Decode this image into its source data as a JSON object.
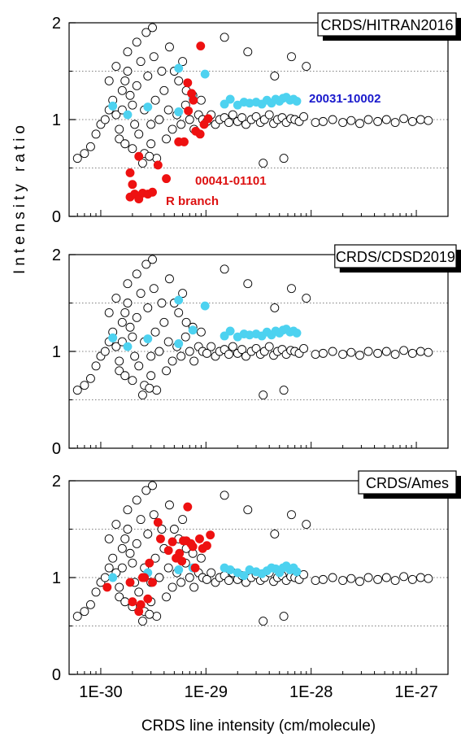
{
  "figure": {
    "xlabel": "CRDS line intensity (cm/molecule)",
    "ylabel": "Intensity ratio",
    "x_tick_labels": [
      "1E-30",
      "1E-29",
      "1E-28",
      "1E-27"
    ],
    "y_tick_labels": [
      "0",
      "1",
      "2"
    ]
  },
  "colors": {
    "open_marker_fill": "#ffffff",
    "open_marker_stroke": "#000000",
    "band_20031_10002": "#4dd2f0",
    "band_00041_01101": "#ee1111",
    "label_blue": "#1a1acc",
    "label_red": "#dd1111",
    "grid_dotted": "#555555"
  },
  "annotations": {
    "band_20031_10002": "20031-10002",
    "band_00041_01101": "00041-01101",
    "r_branch": "R branch"
  },
  "chart_data": [
    {
      "type": "scatter",
      "title": "CRDS/HITRAN2016",
      "xlabel": "CRDS line intensity (cm/molecule)",
      "ylabel": "Intensity ratio",
      "x_scale": "log",
      "xlim": [
        5e-31,
        2e-27
      ],
      "ylim": [
        0,
        2
      ],
      "yticks": [
        0,
        1,
        2
      ],
      "grid": "dotted horizontal at 0.5, 1.0, 1.5",
      "series": [
        {
          "marker": "open-circle",
          "x": [
            6e-31,
            7e-31,
            8e-31,
            9e-31,
            1e-30,
            1.1e-30,
            1.2e-30,
            1.3e-30,
            1.4e-30,
            1.5e-30,
            1.6e-30,
            1.7e-30,
            1.8e-30,
            1.9e-30,
            2e-30,
            2.2e-30,
            2.4e-30,
            2.6e-30,
            2.8e-30,
            3e-30,
            3.3e-30,
            3.6e-30,
            4e-30,
            4.4e-30,
            4.8e-30,
            5.3e-30,
            5.8e-30,
            6.4e-30,
            7e-30,
            7.7e-30,
            8.5e-30,
            9.3e-30,
            1.02e-29,
            1.12e-29,
            1.23e-29,
            1.35e-29,
            1.5e-29,
            1.65e-29,
            1.8e-29,
            2e-29,
            2.2e-29,
            2.4e-29,
            2.7e-29,
            3e-29,
            3.3e-29,
            3.6e-29,
            4e-29,
            4.4e-29,
            4.8e-29,
            5.3e-29,
            5.8e-29,
            6.4e-29,
            7e-29,
            7.7e-29,
            8.5e-29,
            1.1e-28,
            1.3e-28,
            1.6e-28,
            2e-28,
            2.4e-28,
            2.9e-28,
            3.5e-28,
            4.3e-28,
            5.2e-28,
            6.3e-28,
            7.6e-28,
            9.2e-28,
            1.1e-27,
            1.3e-27,
            1.5e-30,
            1.7e-30,
            2e-30,
            2.3e-30,
            2.6e-30,
            3e-30,
            3.4e-30,
            1.2e-30,
            1.4e-30,
            1.8e-30,
            2.2e-30,
            2.7e-30,
            3.2e-30,
            3.8e-30,
            4.5e-30,
            5.5e-30,
            6.5e-30,
            7.5e-30,
            9e-30,
            2.5e-30,
            2.9e-30,
            3.1e-30,
            1.6e-30,
            2.1e-30,
            4.2e-30,
            5e-30,
            6e-30,
            1.5e-29,
            2.5e-29,
            3.5e-29,
            4.5e-29,
            5.5e-29,
            6.5e-29,
            9e-29
          ],
          "y": [
            0.6,
            0.65,
            0.72,
            0.85,
            0.95,
            1.0,
            1.1,
            1.2,
            1.05,
            0.9,
            1.3,
            1.4,
            1.5,
            1.25,
            1.15,
            1.35,
            1.6,
            1.1,
            1.45,
            0.95,
            1.2,
            1.0,
            1.3,
            1.1,
            0.9,
            1.05,
            0.95,
            1.15,
            1.0,
            0.9,
            1.05,
            1.0,
            0.98,
            1.05,
            0.95,
            1.0,
            1.02,
            0.97,
            1.05,
            0.98,
            1.02,
            0.95,
            1.0,
            1.03,
            0.97,
            1.0,
            1.05,
            0.96,
            1.0,
            1.02,
            0.97,
            1.01,
            1.0,
            0.98,
            1.03,
            0.97,
            0.98,
            1.0,
            0.97,
            0.99,
            0.96,
            1.0,
            0.98,
            1.0,
            0.97,
            1.01,
            0.98,
            1.0,
            0.99,
            0.8,
            0.75,
            0.7,
            0.85,
            0.65,
            0.75,
            0.6,
            1.4,
            1.55,
            1.7,
            1.8,
            1.9,
            1.65,
            1.5,
            1.75,
            1.4,
            1.3,
            1.25,
            1.2,
            0.55,
            0.62,
            1.95,
            1.1,
            0.95,
            0.8,
            1.5,
            1.6,
            1.85,
            1.7,
            0.55,
            1.45,
            0.6,
            1.65,
            1.55
          ]
        },
        {
          "name": "20031-10002",
          "marker": "filled-circle",
          "x": [
            1.3e-30,
            1.8e-30,
            2.8e-30,
            5.5e-30,
            5.5e-30,
            7.5e-30,
            9.8e-30,
            1.5e-29,
            1.7e-29,
            2e-29,
            2.3e-29,
            2.6e-29,
            3e-29,
            3.4e-29,
            3.8e-29,
            4.2e-29,
            4.6e-29,
            5e-29,
            5.4e-29,
            5.8e-29,
            6.3e-29,
            6.8e-29,
            7.3e-29
          ],
          "y": [
            1.14,
            1.05,
            1.13,
            1.08,
            1.53,
            1.22,
            1.47,
            1.16,
            1.21,
            1.15,
            1.18,
            1.17,
            1.18,
            1.16,
            1.2,
            1.17,
            1.21,
            1.19,
            1.22,
            1.23,
            1.2,
            1.21,
            1.19
          ]
        },
        {
          "name": "00041-01101",
          "marker": "filled-circle",
          "x": [
            1.9e-30,
            2e-30,
            2.1e-30,
            2.3e-30,
            2.5e-30,
            2.8e-30,
            3.1e-30,
            3.5e-30,
            4.2e-30,
            5.5e-30,
            6.2e-30,
            6.7e-30,
            7.3e-30,
            8e-30,
            8.8e-30,
            9.6e-30,
            1.05e-29,
            8.9e-30,
            6.8e-30,
            7.6e-30,
            2.3e-30,
            1.9e-30
          ],
          "y": [
            0.2,
            0.33,
            0.23,
            0.18,
            0.24,
            0.23,
            0.25,
            0.53,
            0.39,
            0.77,
            0.77,
            1.38,
            1.27,
            0.88,
            0.85,
            0.95,
            1.01,
            1.76,
            1.09,
            1.2,
            0.62,
            0.45
          ]
        }
      ]
    },
    {
      "type": "scatter",
      "title": "CRDS/CDSD2019",
      "xlabel": "CRDS line intensity (cm/molecule)",
      "ylabel": "Intensity ratio",
      "x_scale": "log",
      "xlim": [
        5e-31,
        2e-27
      ],
      "ylim": [
        0,
        2
      ],
      "yticks": [
        0,
        1,
        2
      ],
      "grid": "dotted horizontal at 0.5, 1.0, 1.5",
      "series": [
        {
          "marker": "open-circle",
          "x": [
            6e-31,
            7e-31,
            8e-31,
            9e-31,
            1e-30,
            1.1e-30,
            1.2e-30,
            1.3e-30,
            1.4e-30,
            1.5e-30,
            1.6e-30,
            1.7e-30,
            1.8e-30,
            1.9e-30,
            2e-30,
            2.2e-30,
            2.4e-30,
            2.6e-30,
            2.8e-30,
            3e-30,
            3.3e-30,
            3.6e-30,
            4e-30,
            4.4e-30,
            4.8e-30,
            5.3e-30,
            5.8e-30,
            6.4e-30,
            7e-30,
            7.7e-30,
            8.5e-30,
            9.3e-30,
            1.02e-29,
            1.12e-29,
            1.23e-29,
            1.35e-29,
            1.5e-29,
            1.65e-29,
            1.8e-29,
            2e-29,
            2.2e-29,
            2.4e-29,
            2.7e-29,
            3e-29,
            3.3e-29,
            3.6e-29,
            4e-29,
            4.4e-29,
            4.8e-29,
            5.3e-29,
            5.8e-29,
            6.4e-29,
            7e-29,
            7.7e-29,
            8.5e-29,
            1.1e-28,
            1.3e-28,
            1.6e-28,
            2e-28,
            2.4e-28,
            2.9e-28,
            3.5e-28,
            4.3e-28,
            5.2e-28,
            6.3e-28,
            7.6e-28,
            9.2e-28,
            1.1e-27,
            1.3e-27,
            1.5e-30,
            1.7e-30,
            2e-30,
            2.3e-30,
            2.6e-30,
            3e-30,
            3.4e-30,
            1.2e-30,
            1.4e-30,
            1.8e-30,
            2.2e-30,
            2.7e-30,
            3.2e-30,
            3.8e-30,
            4.5e-30,
            5.5e-30,
            6.5e-30,
            7.5e-30,
            9e-30,
            2.5e-30,
            2.9e-30,
            3.1e-30,
            1.6e-30,
            2.1e-30,
            4.2e-30,
            5e-30,
            6e-30,
            1.5e-29,
            2.5e-29,
            3.5e-29,
            4.5e-29,
            5.5e-29,
            6.5e-29,
            9e-29
          ],
          "y": [
            0.6,
            0.65,
            0.72,
            0.85,
            0.95,
            1.0,
            1.1,
            1.2,
            1.05,
            0.9,
            1.3,
            1.4,
            1.5,
            1.25,
            1.15,
            1.35,
            1.6,
            1.1,
            1.45,
            0.95,
            1.2,
            1.0,
            1.3,
            1.1,
            0.9,
            1.05,
            0.95,
            1.15,
            1.0,
            0.9,
            1.05,
            1.0,
            0.98,
            1.05,
            0.95,
            1.0,
            1.02,
            0.97,
            1.05,
            0.98,
            1.02,
            0.95,
            1.0,
            1.03,
            0.97,
            1.0,
            1.05,
            0.96,
            1.0,
            1.02,
            0.97,
            1.01,
            1.0,
            0.98,
            1.03,
            0.97,
            0.98,
            1.0,
            0.97,
            0.99,
            0.96,
            1.0,
            0.98,
            1.0,
            0.97,
            1.01,
            0.98,
            1.0,
            0.99,
            0.8,
            0.75,
            0.7,
            0.85,
            0.65,
            0.75,
            0.6,
            1.4,
            1.55,
            1.7,
            1.8,
            1.9,
            1.65,
            1.5,
            1.75,
            1.4,
            1.3,
            1.25,
            1.2,
            0.55,
            0.62,
            1.95,
            1.1,
            0.95,
            0.8,
            1.5,
            1.6,
            1.85,
            1.7,
            0.55,
            1.45,
            0.6,
            1.65,
            1.55
          ]
        },
        {
          "name": "20031-10002",
          "marker": "filled-circle",
          "x": [
            1.3e-30,
            1.8e-30,
            2.8e-30,
            5.5e-30,
            5.5e-30,
            7.5e-30,
            9.8e-30,
            1.5e-29,
            1.7e-29,
            2e-29,
            2.3e-29,
            2.6e-29,
            3e-29,
            3.4e-29,
            3.8e-29,
            4.2e-29,
            4.6e-29,
            5e-29,
            5.4e-29,
            5.8e-29,
            6.3e-29,
            6.8e-29,
            7.3e-29
          ],
          "y": [
            1.14,
            1.05,
            1.13,
            1.08,
            1.53,
            1.22,
            1.47,
            1.16,
            1.21,
            1.15,
            1.18,
            1.17,
            1.18,
            1.16,
            1.2,
            1.17,
            1.21,
            1.19,
            1.22,
            1.23,
            1.2,
            1.21,
            1.19
          ]
        }
      ]
    },
    {
      "type": "scatter",
      "title": "CRDS/Ames",
      "xlabel": "CRDS line intensity (cm/molecule)",
      "ylabel": "Intensity ratio",
      "x_scale": "log",
      "xlim": [
        5e-31,
        2e-27
      ],
      "ylim": [
        0,
        2
      ],
      "yticks": [
        0,
        1,
        2
      ],
      "grid": "dotted horizontal at 0.5, 1.0, 1.5",
      "series": [
        {
          "marker": "open-circle",
          "x": [
            6e-31,
            7e-31,
            8e-31,
            9e-31,
            1e-30,
            1.1e-30,
            1.2e-30,
            1.3e-30,
            1.4e-30,
            1.5e-30,
            1.6e-30,
            1.7e-30,
            1.8e-30,
            1.9e-30,
            2e-30,
            2.2e-30,
            2.4e-30,
            2.6e-30,
            2.8e-30,
            3e-30,
            3.3e-30,
            3.6e-30,
            4e-30,
            4.4e-30,
            4.8e-30,
            5.3e-30,
            5.8e-30,
            6.4e-30,
            7e-30,
            7.7e-30,
            8.5e-30,
            9.3e-30,
            1.02e-29,
            1.12e-29,
            1.23e-29,
            1.35e-29,
            1.5e-29,
            1.65e-29,
            1.8e-29,
            2e-29,
            2.2e-29,
            2.4e-29,
            2.7e-29,
            3e-29,
            3.3e-29,
            3.6e-29,
            4e-29,
            4.4e-29,
            4.8e-29,
            5.3e-29,
            5.8e-29,
            6.4e-29,
            7e-29,
            7.7e-29,
            8.5e-29,
            1.1e-28,
            1.3e-28,
            1.6e-28,
            2e-28,
            2.4e-28,
            2.9e-28,
            3.5e-28,
            4.3e-28,
            5.2e-28,
            6.3e-28,
            7.6e-28,
            9.2e-28,
            1.1e-27,
            1.3e-27,
            1.5e-30,
            1.7e-30,
            2e-30,
            2.3e-30,
            2.6e-30,
            3e-30,
            3.4e-30,
            1.2e-30,
            1.4e-30,
            1.8e-30,
            2.2e-30,
            2.7e-30,
            3.2e-30,
            3.8e-30,
            4.5e-30,
            5.5e-30,
            6.5e-30,
            7.5e-30,
            9e-30,
            2.5e-30,
            2.9e-30,
            3.1e-30,
            1.6e-30,
            2.1e-30,
            4.2e-30,
            5e-30,
            6e-30,
            1.5e-29,
            2.5e-29,
            3.5e-29,
            4.5e-29,
            5.5e-29,
            6.5e-29,
            9e-29
          ],
          "y": [
            0.6,
            0.65,
            0.72,
            0.85,
            0.95,
            1.0,
            1.1,
            1.2,
            1.05,
            0.9,
            1.3,
            1.4,
            1.5,
            1.25,
            1.15,
            1.35,
            1.6,
            1.1,
            1.45,
            0.95,
            1.2,
            1.0,
            1.3,
            1.1,
            0.9,
            1.05,
            0.95,
            1.15,
            1.0,
            0.9,
            1.05,
            1.0,
            0.98,
            1.05,
            0.95,
            1.0,
            1.02,
            0.97,
            1.05,
            0.98,
            1.02,
            0.95,
            1.0,
            1.03,
            0.97,
            1.0,
            1.05,
            0.96,
            1.0,
            1.02,
            0.97,
            1.01,
            1.0,
            0.98,
            1.03,
            0.97,
            0.98,
            1.0,
            0.97,
            0.99,
            0.96,
            1.0,
            0.98,
            1.0,
            0.97,
            1.01,
            0.98,
            1.0,
            0.99,
            0.8,
            0.75,
            0.7,
            0.85,
            0.65,
            0.75,
            0.6,
            1.4,
            1.55,
            1.7,
            1.8,
            1.9,
            1.65,
            1.5,
            1.75,
            1.4,
            1.3,
            1.25,
            1.2,
            0.55,
            0.62,
            1.95,
            1.1,
            0.95,
            0.8,
            1.5,
            1.6,
            1.85,
            1.7,
            0.55,
            1.45,
            0.6,
            1.65,
            1.55
          ]
        },
        {
          "name": "20031-10002",
          "marker": "filled-circle",
          "x": [
            1.3e-30,
            2.8e-30,
            5.5e-30,
            7.5e-30,
            1.5e-29,
            1.7e-29,
            2e-29,
            2.3e-29,
            2.6e-29,
            3e-29,
            3.4e-29,
            3.8e-29,
            4.2e-29,
            4.6e-29,
            5e-29,
            5.4e-29,
            5.8e-29,
            6.3e-29,
            6.8e-29,
            7.3e-29
          ],
          "y": [
            1.0,
            1.05,
            1.08,
            1.1,
            1.1,
            1.08,
            1.05,
            1.02,
            1.08,
            1.06,
            1.04,
            1.07,
            1.1,
            1.09,
            1.05,
            1.1,
            1.12,
            1.08,
            1.1,
            1.06
          ]
        },
        {
          "name": "00041-01101",
          "marker": "filled-circle",
          "x": [
            1.15e-30,
            1.9e-30,
            2e-30,
            2.3e-30,
            2.4e-30,
            2.6e-30,
            2.8e-30,
            3.1e-30,
            3.5e-30,
            3.7e-30,
            4.4e-30,
            4.8e-30,
            5.2e-30,
            5.9e-30,
            6.5e-30,
            6.7e-30,
            7.2e-30,
            7.9e-30,
            8.7e-30,
            9.3e-30,
            1.02e-29,
            1.1e-29,
            2.5e-30,
            2.9e-30,
            5.6e-30,
            6.1e-30,
            7.5e-30
          ],
          "y": [
            0.9,
            0.95,
            0.75,
            0.65,
            0.72,
            1.0,
            0.78,
            0.95,
            1.57,
            1.4,
            1.28,
            1.37,
            1.2,
            1.17,
            1.38,
            1.73,
            1.35,
            1.1,
            1.4,
            1.3,
            1.33,
            1.44,
            1.0,
            1.15,
            1.25,
            1.38,
            1.32
          ]
        }
      ]
    }
  ]
}
